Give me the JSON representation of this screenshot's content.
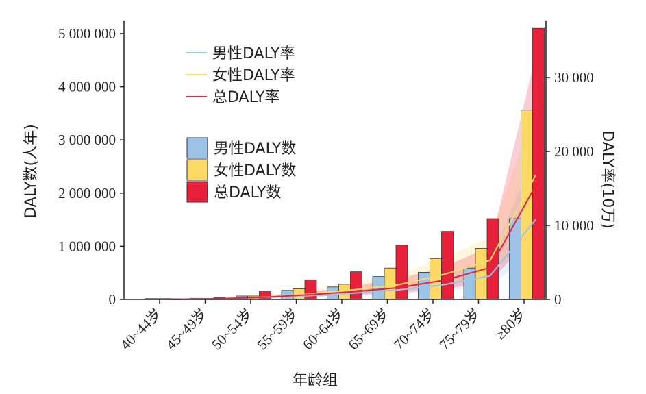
{
  "chart_data": {
    "type": "bar",
    "categories": [
      "40~44岁",
      "45~49岁",
      "50~54岁",
      "55~59岁",
      "60~64岁",
      "65~69岁",
      "70~74岁",
      "75~79岁",
      "≥80岁"
    ],
    "xlabel": "年龄组",
    "ylabel_left": "DALY数(人年)",
    "ylabel_right": "DALY率(10万)",
    "ylim_left": [
      0,
      5200000
    ],
    "ylim_right": [
      0,
      37000
    ],
    "left_ticks": [
      {
        "value": 0,
        "label": "0"
      },
      {
        "value": 1000000,
        "label": "1 000 000"
      },
      {
        "value": 2000000,
        "label": "2 000 000"
      },
      {
        "value": 3000000,
        "label": "3 000 000"
      },
      {
        "value": 4000000,
        "label": "4 000 000"
      },
      {
        "value": 5000000,
        "label": "5 000 000"
      }
    ],
    "right_ticks": [
      {
        "value": 0,
        "label": "0"
      },
      {
        "value": 10000,
        "label": "10 000"
      },
      {
        "value": 20000,
        "label": "20 000"
      },
      {
        "value": 30000,
        "label": "30 000"
      }
    ],
    "bar_series": [
      {
        "name": "男性DALY数",
        "color": "#9dc3e6",
        "values": [
          5000,
          22000,
          65000,
          170000,
          235000,
          430000,
          510000,
          590000,
          1520000
        ]
      },
      {
        "name": "女性DALY数",
        "color": "#ffd966",
        "values": [
          3000,
          18000,
          65000,
          200000,
          285000,
          590000,
          770000,
          960000,
          3560000
        ]
      },
      {
        "name": "总DALY数",
        "color": "#e8213b",
        "values": [
          9000,
          38000,
          160000,
          370000,
          520000,
          1020000,
          1280000,
          1520000,
          5100000
        ]
      }
    ],
    "line_series": [
      {
        "name": "男性DALY率",
        "color": "#9dc3e6",
        "values": [
          30,
          100,
          250,
          500,
          850,
          1300,
          2000,
          3200,
          10800
        ],
        "lower": [
          15,
          60,
          160,
          320,
          500,
          750,
          1100,
          1800,
          6500
        ],
        "upper": [
          50,
          160,
          400,
          800,
          1300,
          2100,
          3200,
          5200,
          20000
        ]
      },
      {
        "name": "女性DALY率",
        "color": "#ffd966",
        "values": [
          20,
          80,
          300,
          700,
          1300,
          2000,
          3400,
          5300,
          16800
        ],
        "lower": [
          10,
          40,
          160,
          400,
          750,
          1100,
          1800,
          3000,
          10000
        ],
        "upper": [
          40,
          140,
          500,
          1200,
          2200,
          3400,
          5600,
          8500,
          26000
        ]
      },
      {
        "name": "总DALY率",
        "color": "#e8213b",
        "values": [
          25,
          90,
          280,
          620,
          1050,
          1600,
          2600,
          4300,
          15400
        ],
        "lower": [
          10,
          50,
          160,
          360,
          600,
          900,
          1400,
          2400,
          9000
        ],
        "upper": [
          45,
          150,
          450,
          1000,
          1800,
          2800,
          4400,
          7200,
          33000
        ]
      }
    ],
    "legend_lines_position": "top-left",
    "legend_bars_position": "upper-middle-left",
    "grid": false
  }
}
